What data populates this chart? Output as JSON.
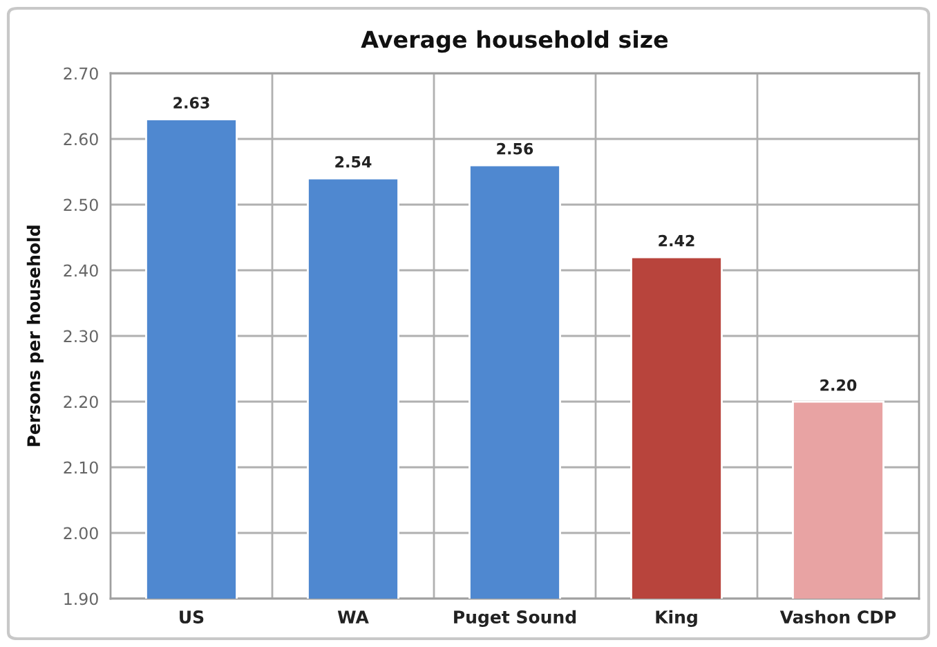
{
  "chart_data": {
    "type": "bar",
    "title": "Average household size",
    "ylabel": "Persons per household",
    "categories": [
      "US",
      "WA",
      "Puget Sound",
      "King",
      "Vashon CDP"
    ],
    "values": [
      2.63,
      2.54,
      2.56,
      2.42,
      2.2
    ],
    "colors": [
      "#4f88d0",
      "#4f88d0",
      "#4f88d0",
      "#b8443c",
      "#e8a3a3"
    ],
    "value_labels": [
      "2.63",
      "2.54",
      "2.56",
      "2.42",
      "2.20"
    ],
    "ylim": [
      1.9,
      2.7
    ],
    "yticks": [
      {
        "value": 1.9,
        "label": "1.90"
      },
      {
        "value": 2.0,
        "label": "2.00"
      },
      {
        "value": 2.1,
        "label": "2.10"
      },
      {
        "value": 2.2,
        "label": "2.20"
      },
      {
        "value": 2.3,
        "label": "2.30"
      },
      {
        "value": 2.4,
        "label": "2.40"
      },
      {
        "value": 2.5,
        "label": "2.50"
      },
      {
        "value": 2.6,
        "label": "2.60"
      },
      {
        "value": 2.7,
        "label": "2.70"
      }
    ],
    "grid": true
  }
}
